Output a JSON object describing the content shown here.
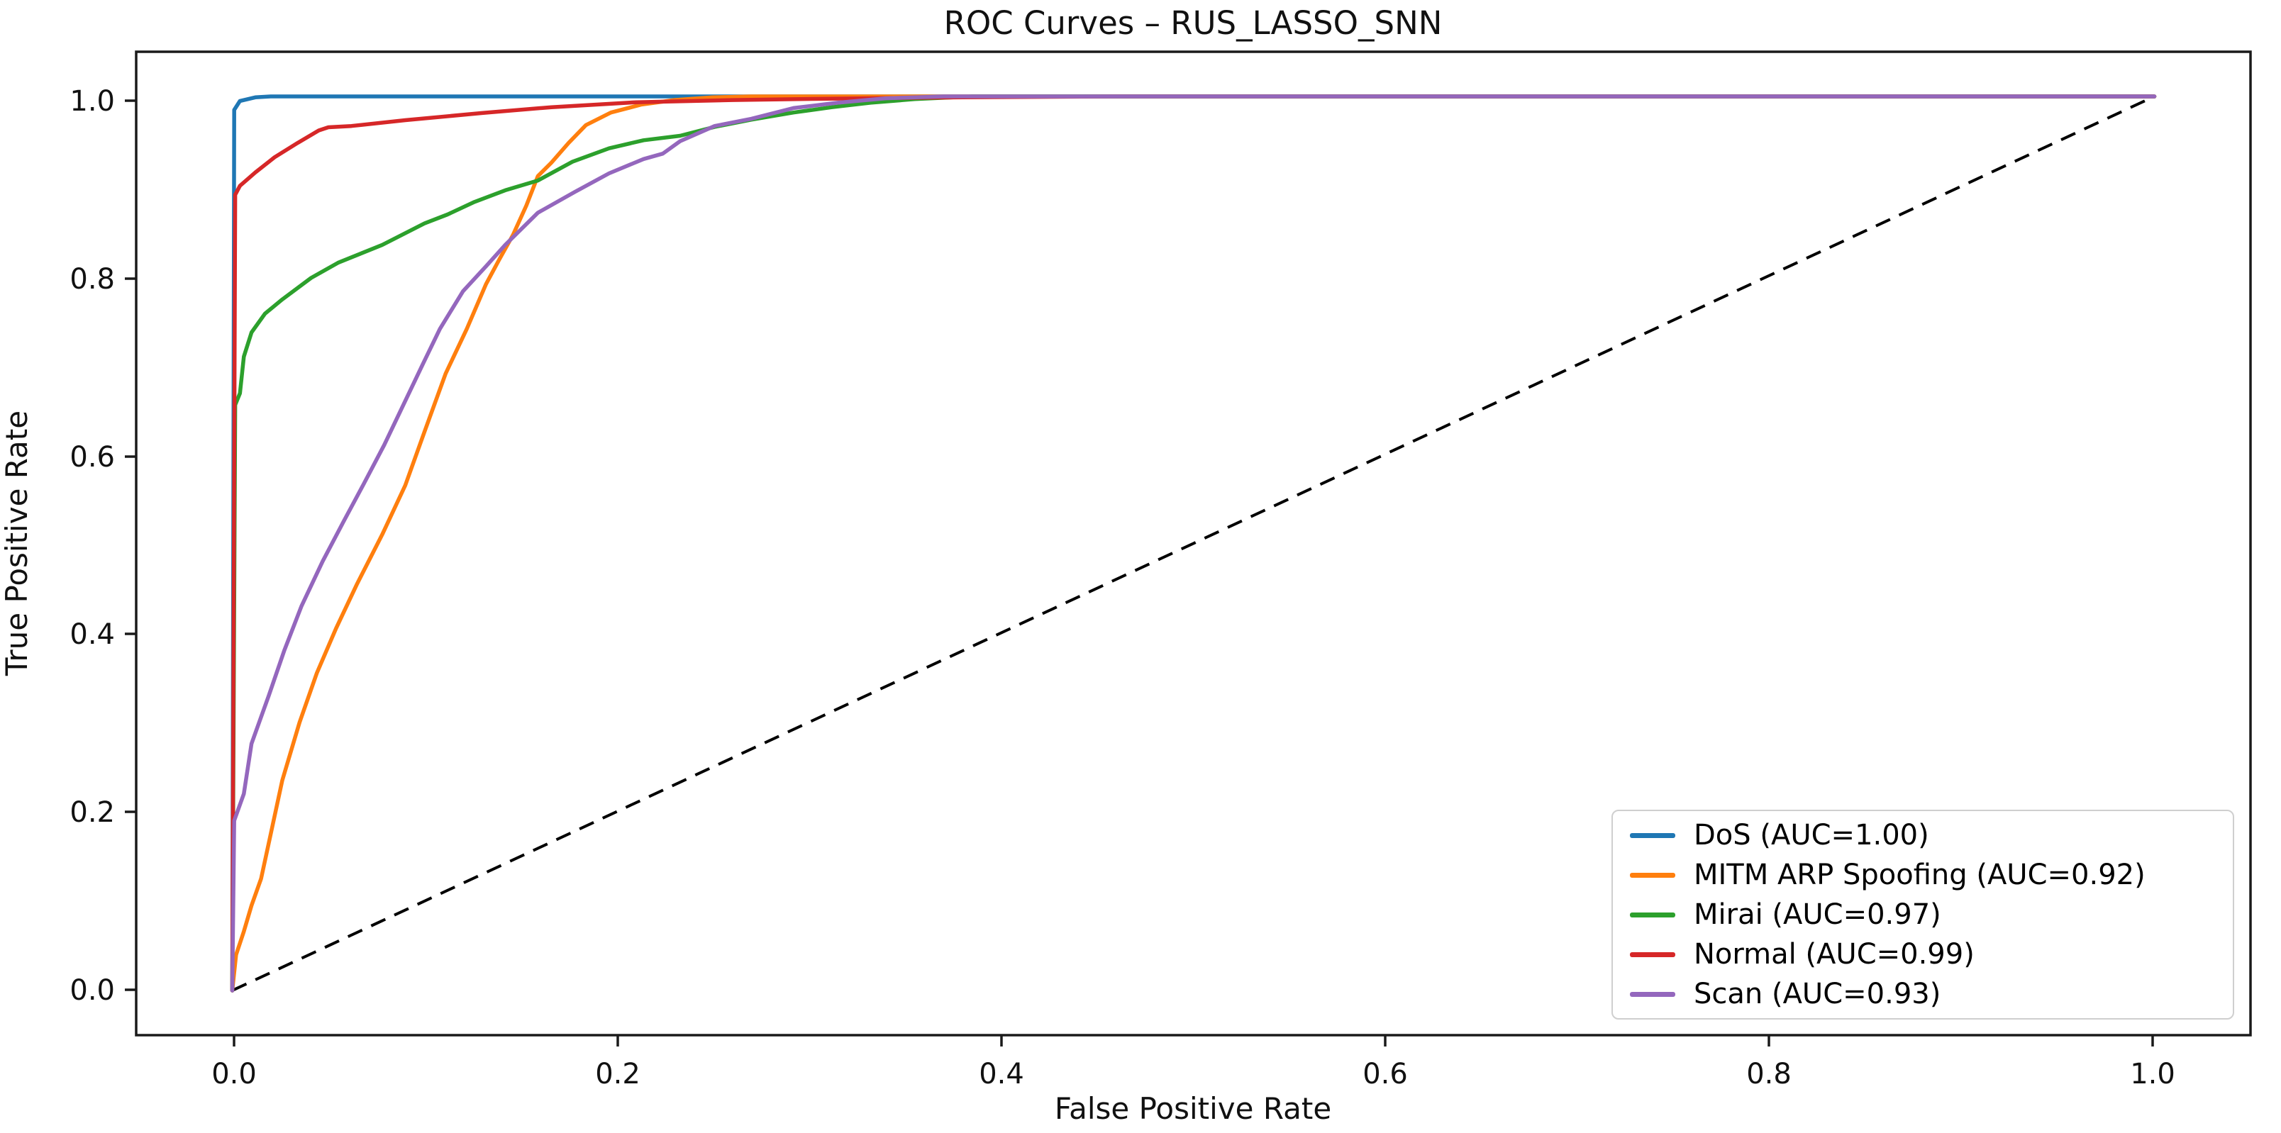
{
  "title": "ROC Curves – RUS_LASSO_SNN",
  "axes": {
    "xlabel": "False Positive Rate",
    "ylabel": "True Positive Rate",
    "x_tick_labels": [
      "0.0",
      "0.2",
      "0.4",
      "0.6",
      "0.8",
      "1.0"
    ],
    "y_tick_labels": [
      "0.0",
      "0.2",
      "0.4",
      "0.6",
      "0.8",
      "1.0"
    ]
  },
  "legend": {
    "position": "lower right",
    "entries": [
      {
        "label": "DoS (AUC=1.00)",
        "color": "#1f77b4"
      },
      {
        "label": "MITM ARP Spoofing (AUC=0.92)",
        "color": "#ff7f0e"
      },
      {
        "label": "Mirai (AUC=0.97)",
        "color": "#2ca02c"
      },
      {
        "label": "Normal (AUC=0.99)",
        "color": "#d62728"
      },
      {
        "label": "Scan (AUC=0.93)",
        "color": "#9467bd"
      }
    ]
  },
  "chart_data": {
    "type": "line",
    "title": "ROC Curves – RUS_LASSO_SNN",
    "xlabel": "False Positive Rate",
    "ylabel": "True Positive Rate",
    "xlim": [
      -0.05,
      1.05
    ],
    "ylim": [
      -0.05,
      1.05
    ],
    "x_ticks": [
      0.0,
      0.2,
      0.4,
      0.6,
      0.8,
      1.0
    ],
    "y_ticks": [
      0.0,
      0.2,
      0.4,
      0.6,
      0.8,
      1.0
    ],
    "grid": false,
    "legend_position": "lower right",
    "reference_line": {
      "name": "chance-diagonal",
      "style": "dashed",
      "color": "#000000",
      "points": [
        [
          0,
          0
        ],
        [
          1,
          1
        ]
      ]
    },
    "series": [
      {
        "name": "DoS",
        "auc": 1.0,
        "color": "#1f77b4",
        "points": [
          [
            0,
            0
          ],
          [
            0.001,
            0.985
          ],
          [
            0.004,
            0.995
          ],
          [
            0.012,
            0.999
          ],
          [
            0.02,
            1
          ],
          [
            1,
            1
          ]
        ]
      },
      {
        "name": "MITM ARP Spoofing",
        "auc": 0.92,
        "color": "#ff7f0e",
        "points": [
          [
            0,
            0
          ],
          [
            0.002,
            0.04
          ],
          [
            0.006,
            0.066
          ],
          [
            0.01,
            0.095
          ],
          [
            0.015,
            0.125
          ],
          [
            0.02,
            0.175
          ],
          [
            0.026,
            0.235
          ],
          [
            0.035,
            0.3
          ],
          [
            0.044,
            0.355
          ],
          [
            0.054,
            0.405
          ],
          [
            0.065,
            0.455
          ],
          [
            0.078,
            0.51
          ],
          [
            0.09,
            0.565
          ],
          [
            0.1,
            0.625
          ],
          [
            0.111,
            0.69
          ],
          [
            0.122,
            0.74
          ],
          [
            0.132,
            0.79
          ],
          [
            0.139,
            0.818
          ],
          [
            0.146,
            0.845
          ],
          [
            0.153,
            0.878
          ],
          [
            0.159,
            0.911
          ],
          [
            0.166,
            0.926
          ],
          [
            0.175,
            0.948
          ],
          [
            0.184,
            0.968
          ],
          [
            0.197,
            0.982
          ],
          [
            0.213,
            0.991
          ],
          [
            0.23,
            0.996
          ],
          [
            0.25,
            0.999
          ],
          [
            0.27,
            1
          ],
          [
            1,
            1
          ]
        ]
      },
      {
        "name": "Mirai",
        "auc": 0.97,
        "color": "#2ca02c",
        "points": [
          [
            0,
            0
          ],
          [
            0.0015,
            0.655
          ],
          [
            0.004,
            0.668
          ],
          [
            0.006,
            0.709
          ],
          [
            0.01,
            0.736
          ],
          [
            0.017,
            0.757
          ],
          [
            0.026,
            0.773
          ],
          [
            0.041,
            0.797
          ],
          [
            0.055,
            0.814
          ],
          [
            0.078,
            0.834
          ],
          [
            0.1,
            0.858
          ],
          [
            0.112,
            0.868
          ],
          [
            0.126,
            0.882
          ],
          [
            0.142,
            0.895
          ],
          [
            0.159,
            0.906
          ],
          [
            0.177,
            0.927
          ],
          [
            0.196,
            0.942
          ],
          [
            0.214,
            0.951
          ],
          [
            0.233,
            0.956
          ],
          [
            0.251,
            0.966
          ],
          [
            0.27,
            0.974
          ],
          [
            0.292,
            0.982
          ],
          [
            0.312,
            0.988
          ],
          [
            0.332,
            0.993
          ],
          [
            0.355,
            0.997
          ],
          [
            0.385,
            1
          ],
          [
            1,
            1
          ]
        ]
      },
      {
        "name": "Normal",
        "auc": 0.99,
        "color": "#d62728",
        "points": [
          [
            0,
            0
          ],
          [
            0.0015,
            0.89
          ],
          [
            0.004,
            0.9
          ],
          [
            0.012,
            0.915
          ],
          [
            0.022,
            0.932
          ],
          [
            0.034,
            0.948
          ],
          [
            0.045,
            0.962
          ],
          [
            0.05,
            0.9655
          ],
          [
            0.062,
            0.967
          ],
          [
            0.09,
            0.9735
          ],
          [
            0.13,
            0.9815
          ],
          [
            0.166,
            0.988
          ],
          [
            0.21,
            0.9935
          ],
          [
            0.26,
            0.996
          ],
          [
            0.31,
            0.9975
          ],
          [
            0.38,
            0.999
          ],
          [
            0.46,
            1
          ],
          [
            1,
            1
          ]
        ]
      },
      {
        "name": "Scan",
        "auc": 0.93,
        "color": "#9467bd",
        "points": [
          [
            0,
            0
          ],
          [
            0.001,
            0.19
          ],
          [
            0.006,
            0.22
          ],
          [
            0.01,
            0.276
          ],
          [
            0.019,
            0.33
          ],
          [
            0.027,
            0.38
          ],
          [
            0.036,
            0.43
          ],
          [
            0.047,
            0.48
          ],
          [
            0.058,
            0.525
          ],
          [
            0.068,
            0.565
          ],
          [
            0.079,
            0.61
          ],
          [
            0.089,
            0.655
          ],
          [
            0.099,
            0.7
          ],
          [
            0.108,
            0.74
          ],
          [
            0.12,
            0.782
          ],
          [
            0.132,
            0.81
          ],
          [
            0.142,
            0.834
          ],
          [
            0.159,
            0.87
          ],
          [
            0.178,
            0.893
          ],
          [
            0.196,
            0.914
          ],
          [
            0.214,
            0.93
          ],
          [
            0.224,
            0.936
          ],
          [
            0.233,
            0.95
          ],
          [
            0.251,
            0.967
          ],
          [
            0.27,
            0.975
          ],
          [
            0.292,
            0.987
          ],
          [
            0.315,
            0.993
          ],
          [
            0.34,
            0.998
          ],
          [
            0.37,
            1
          ],
          [
            1,
            1
          ]
        ]
      }
    ]
  }
}
